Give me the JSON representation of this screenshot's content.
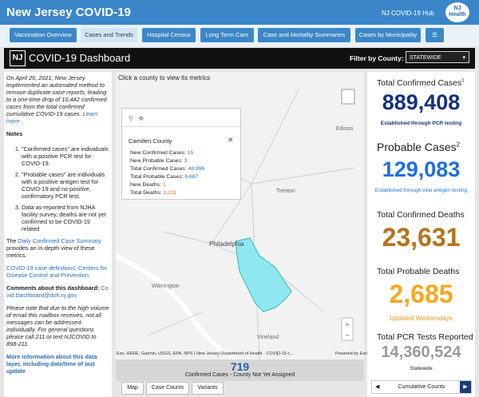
{
  "header": {
    "title": "New Jersey COVID-19",
    "hub": "NJ COVID-19 Hub",
    "logo": "NJ Health"
  },
  "tabs": [
    "Vaccination Overview",
    "Cases and Trends",
    "Hospital Census",
    "Long Term Care",
    "Case and Mortality Summaries",
    "Cases by Municipality"
  ],
  "dashboard": {
    "logo": "NJ",
    "title": "COVID-19 Dashboard",
    "filter_label": "Filter by County:",
    "filter_value": "STATEWIDE"
  },
  "left": {
    "notice": "On April 26, 2021, New Jersey implemented an automated method to remove duplicate case reports, leading to a one-time drop of 10,442 confirmed cases from the total confirmed cumulative COVID-19 cases.",
    "notice_link": "Learn more.",
    "notes_heading": "Notes",
    "notes": [
      "\"Confirmed cases\" are individuals with a positive PCR test for COVID-19.",
      "\"Probable cases\" are individuals with a positive antigen test for COVID-19 and no positive, confirmatory PCR test.",
      "Data as-reported from NJHA facility survey, deaths are not yet confirmed to be COVID-19 related"
    ],
    "summary_prefix": "The",
    "summary_link": "Daily Confirmed Case Summary",
    "summary_suffix": "provides an in-depth view of these metrics.",
    "definitions_link": "COVID-19 case definitions, Centers for Disease Control and Prevention",
    "comments_heading": "Comments about this dashboard:",
    "comments_email": "Covid.Dashboard@doh.nj.gov",
    "email_note": "Please note that due to the high volume of email this mailbox receives, not all messages can be addressed individually. For general questions please call 211 or text NJCOVID to 898-211.",
    "more_info": "More information about this data layer, including date/time of last update"
  },
  "map": {
    "hint": "Click a county to view its metrics",
    "places": [
      "Edison",
      "Trenton",
      "Philadelphia",
      "Wilmington",
      "Vineland"
    ],
    "popup": {
      "title": "Camden County",
      "rows": [
        {
          "label": "New Confirmed Cases:",
          "value": "15"
        },
        {
          "label": "New Probable Cases:",
          "value": "3"
        },
        {
          "label": "Total Confirmed Cases:",
          "value": "48,996"
        },
        {
          "label": "Total Probable Cases:",
          "value": "6,687"
        },
        {
          "label": "New Deaths:",
          "value": "1"
        },
        {
          "label": "Total Deaths:",
          "value": "1,211"
        }
      ]
    },
    "attribution": "Esri, HERE, Garmin, USGS, EPA, NPS | New Jersey Department of Health - COVID-19 c...",
    "powered": "Powered by Esri",
    "unassigned_value": "719",
    "unassigned_label": "Confirmed Cases - County Not Yet Assigned",
    "bottom_tabs": [
      "Map",
      "Case Counts",
      "Variants"
    ]
  },
  "metrics": [
    {
      "title": "Total Confirmed Cases",
      "sup": "1",
      "value": "889,408",
      "sub": "Established through PCR testing"
    },
    {
      "title": "Probable Cases",
      "sup": "2",
      "value": "129,083",
      "sub": "Established through viral antigen testing"
    },
    {
      "title": "Total Confirmed Deaths",
      "value": "23,631"
    },
    {
      "title": "Total Probable Deaths",
      "value": "2,685",
      "sub": "Updated Wednesdays"
    },
    {
      "title": "Total PCR Tests Reported",
      "value": "14,360,524",
      "sub": "Statewide"
    }
  ],
  "metrics_nav": "Cumulative Counts"
}
